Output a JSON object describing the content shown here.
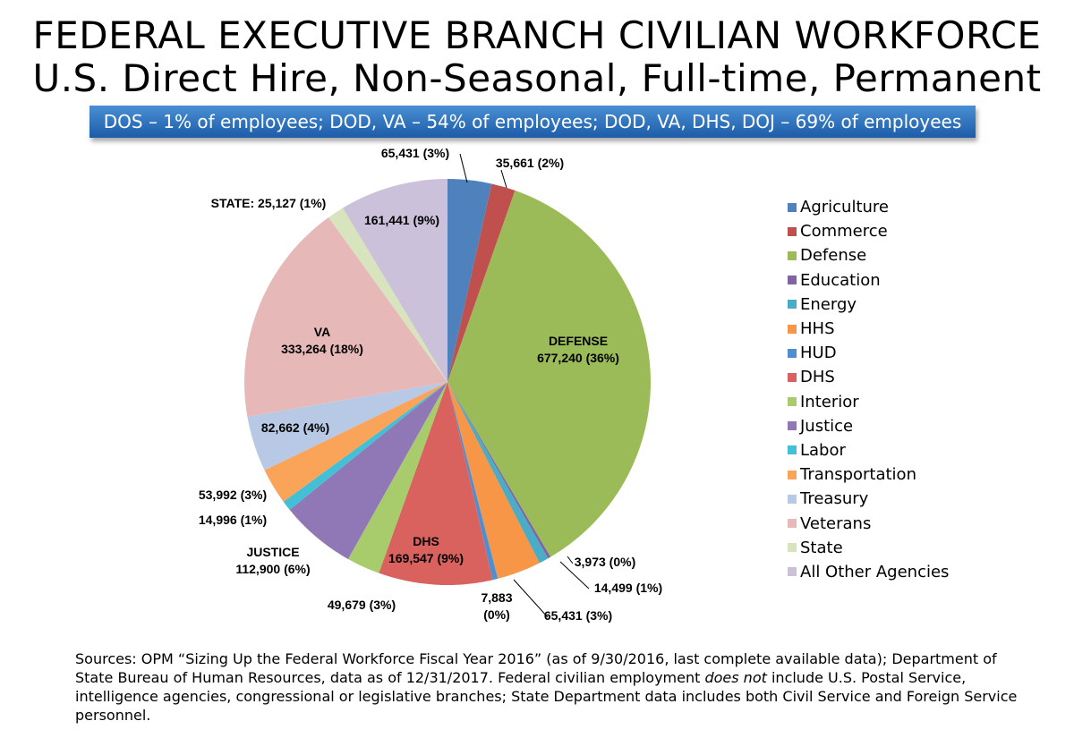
{
  "title_line1": "FEDERAL EXECUTIVE BRANCH CIVILIAN WORKFORCE",
  "title_line2": "U.S. Direct Hire, Non-Seasonal, Full-time, Permanent",
  "banner": "DOS – 1% of employees; DOD, VA – 54% of employees; DOD, VA, DHS, DOJ – 69% of employees",
  "sources_part1": "Sources:  OPM “Sizing Up the Federal Workforce Fiscal Year 2016” (as of 9/30/2016, last complete available data); Department of State Bureau of Human Resources, data as of 12/31/2017. Federal civilian employment ",
  "sources_emph": "does not",
  "sources_part2": " include U.S. Postal Service, intelligence agencies, congressional or legislative branches; State Department data includes both Civil Service and Foreign Service personnel.",
  "chart_data": {
    "type": "pie",
    "title": "",
    "legend_position": "right",
    "slices": [
      {
        "name": "Agriculture",
        "value": 65431,
        "label_lines": [
          "65,431 (3%)"
        ],
        "color": "#4f81bd"
      },
      {
        "name": "Commerce",
        "value": 35661,
        "label_lines": [
          "35,661 (2%)"
        ],
        "color": "#c0504d"
      },
      {
        "name": "Defense",
        "value": 677240,
        "label_lines": [
          "DEFENSE",
          "677,240 (36%)"
        ],
        "color": "#9bbb59"
      },
      {
        "name": "Education",
        "value": 3973,
        "label_lines": [
          "3,973 (0%)"
        ],
        "color": "#8064a2"
      },
      {
        "name": "Energy",
        "value": 14499,
        "label_lines": [
          "14,499 (1%)"
        ],
        "color": "#4bacc6"
      },
      {
        "name": "HHS",
        "value": 65431,
        "label_lines": [
          "65,431 (3%)"
        ],
        "color": "#f79646"
      },
      {
        "name": "HUD",
        "value": 7883,
        "label_lines": [
          "7,883",
          "(0%)"
        ],
        "color": "#4f8fd0"
      },
      {
        "name": "DHS",
        "value": 169547,
        "label_lines": [
          "DHS",
          "169,547 (9%)"
        ],
        "color": "#d9625e"
      },
      {
        "name": "Interior",
        "value": 49679,
        "label_lines": [
          "49,679 (3%)"
        ],
        "color": "#a8cb6c"
      },
      {
        "name": "Justice",
        "value": 112900,
        "label_lines": [
          "JUSTICE",
          "112,900 (6%)"
        ],
        "color": "#9078b6"
      },
      {
        "name": "Labor",
        "value": 14996,
        "label_lines": [
          "14,996 (1%)"
        ],
        "color": "#43bfd6"
      },
      {
        "name": "Transportation",
        "value": 53992,
        "label_lines": [
          "53,992 (3%)"
        ],
        "color": "#faa45a"
      },
      {
        "name": "Treasury",
        "value": 82662,
        "label_lines": [
          "82,662 (4%)"
        ],
        "color": "#b8c9e6"
      },
      {
        "name": "Veterans",
        "value": 333264,
        "label_lines": [
          "VA",
          "333,264 (18%)"
        ],
        "color": "#e6b9b8"
      },
      {
        "name": "State",
        "value": 25127,
        "label_lines": [
          "STATE:  25,127 (1%)"
        ],
        "color": "#d7e4bd"
      },
      {
        "name": "All Other Agencies",
        "value": 161441,
        "label_lines": [
          "161,441 (9%)"
        ],
        "color": "#ccc1da"
      }
    ]
  }
}
